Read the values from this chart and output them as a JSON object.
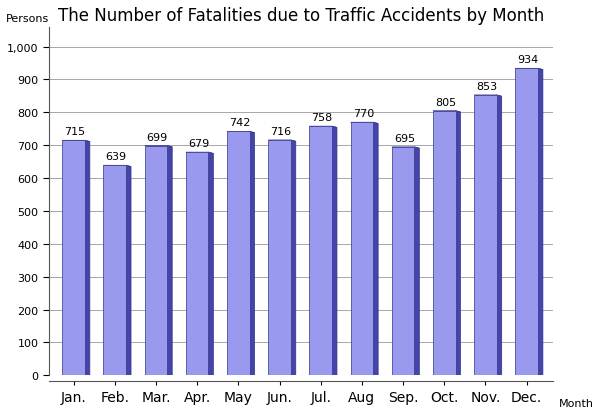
{
  "title": "The Number of Fatalities due to Traffic Accidents by Month",
  "categories": [
    "Jan.",
    "Feb.",
    "Mar.",
    "Apr.",
    "May",
    "Jun.",
    "Jul.",
    "Aug",
    "Sep.",
    "Oct.",
    "Nov.",
    "Dec."
  ],
  "values": [
    715,
    639,
    699,
    679,
    742,
    716,
    758,
    770,
    695,
    805,
    853,
    934
  ],
  "xlabel": "Month",
  "ylabel": "Persons",
  "ylim": [
    0,
    1000
  ],
  "yticks": [
    0,
    100,
    200,
    300,
    400,
    500,
    600,
    700,
    800,
    900,
    1000
  ],
  "ytick_labels": [
    "0",
    "100",
    "200",
    "300",
    "400",
    "500",
    "600",
    "700",
    "800",
    "900",
    "1,000"
  ],
  "bar_face_color": "#9999EE",
  "bar_right_color": "#4444AA",
  "bar_top_color": "#AAAAFF",
  "base_color": "#888877",
  "base_top_color": "#AAAAAA",
  "background_color": "#FFFFFF",
  "grid_color": "#999999",
  "title_fontsize": 12,
  "axis_label_fontsize": 8,
  "tick_fontsize": 8,
  "value_fontsize": 8
}
